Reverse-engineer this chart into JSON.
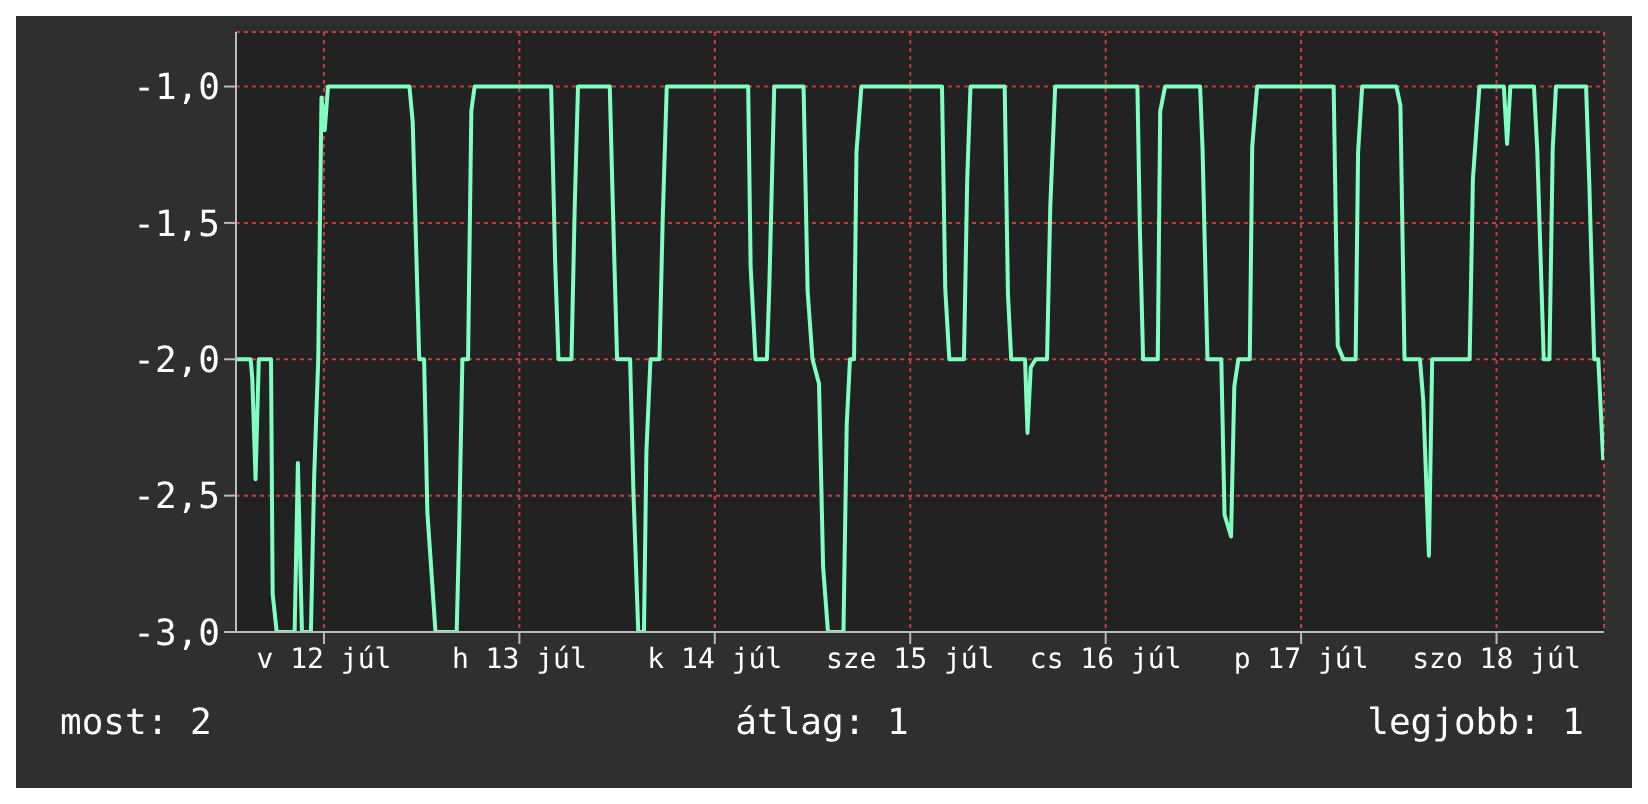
{
  "chart_data": {
    "type": "line",
    "xlim": [
      "--07-12T01:12",
      "--07-19T01:12"
    ],
    "xticks": [
      {
        "value": "--07-12T12:00",
        "label": "v 12 júl"
      },
      {
        "value": "--07-13T12:00",
        "label": "h 13 júl"
      },
      {
        "value": "--07-14T12:00",
        "label": "k 14 júl"
      },
      {
        "value": "--07-15T12:00",
        "label": "sze 15 júl"
      },
      {
        "value": "--07-16T12:00",
        "label": "cs 16 júl"
      },
      {
        "value": "--07-17T12:00",
        "label": "p 17 júl"
      },
      {
        "value": "--07-18T12:00",
        "label": "szo 18 júl"
      }
    ],
    "ylim": [
      -3,
      -0.8
    ],
    "yticks": [
      {
        "value": -3,
        "label": "-3,0"
      },
      {
        "value": -2.5,
        "label": "-2,5"
      },
      {
        "value": -2,
        "label": "-2,0"
      },
      {
        "value": -1.5,
        "label": "-1,5"
      },
      {
        "value": -1,
        "label": "-1,0"
      }
    ],
    "grid": true,
    "marker": "none",
    "line_style": "solid",
    "annotations": [
      "most: 2",
      "átlag: 1",
      "legjobb: 1"
    ],
    "series": [
      {
        "color": "#80ffc0",
        "x": [
          "--07-12T01:12",
          "--07-12T03:00",
          "--07-12T03:12",
          "--07-12T03:36",
          "--07-12T04:00",
          "--07-12T05:30",
          "--07-12T05:42",
          "--07-12T06:12",
          "--07-12T08:24",
          "--07-12T08:48",
          "--07-12T09:18",
          "--07-12T10:24",
          "--07-12T10:48",
          "--07-12T11:18",
          "--07-12T11:42",
          "--07-12T12:06",
          "--07-12T12:30",
          "--07-12T22:30",
          "--07-12T22:54",
          "--07-12T23:42",
          "--07-13T00:18",
          "--07-13T00:42",
          "--07-13T01:42",
          "--07-13T04:18",
          "--07-13T04:36",
          "--07-13T05:00",
          "--07-13T05:42",
          "--07-13T06:06",
          "--07-13T06:30",
          "--07-13T15:54",
          "--07-13T16:24",
          "--07-13T16:48",
          "--07-13T18:24",
          "--07-13T18:48",
          "--07-13T19:12",
          "--07-13T23:06",
          "--07-13T23:30",
          "--07-14T00:00",
          "--07-14T01:36",
          "--07-14T02:00",
          "--07-14T02:36",
          "--07-14T03:18",
          "--07-14T03:36",
          "--07-14T04:06",
          "--07-14T05:12",
          "--07-14T05:36",
          "--07-14T06:06",
          "--07-14T16:06",
          "--07-14T16:24",
          "--07-14T17:00",
          "--07-14T18:24",
          "--07-14T18:42",
          "--07-14T19:18",
          "--07-14T22:54",
          "--07-14T23:24",
          "--07-15T00:00",
          "--07-15T00:48",
          "--07-15T01:18",
          "--07-15T01:54",
          "--07-15T03:48",
          "--07-15T04:12",
          "--07-15T04:36",
          "--07-15T05:06",
          "--07-15T05:24",
          "--07-15T06:00",
          "--07-15T15:54",
          "--07-15T16:18",
          "--07-15T16:48",
          "--07-15T18:36",
          "--07-15T19:00",
          "--07-15T19:24",
          "--07-15T23:36",
          "--07-16T00:00",
          "--07-16T00:24",
          "--07-16T02:06",
          "--07-16T02:24",
          "--07-16T02:48",
          "--07-16T03:24",
          "--07-16T04:48",
          "--07-16T05:12",
          "--07-16T05:48",
          "--07-16T15:54",
          "--07-16T16:12",
          "--07-16T16:36",
          "--07-16T18:24",
          "--07-16T18:42",
          "--07-16T19:18",
          "--07-16T23:36",
          "--07-16T23:54",
          "--07-17T00:30",
          "--07-17T02:12",
          "--07-17T02:36",
          "--07-17T03:24",
          "--07-17T03:48",
          "--07-17T04:18",
          "--07-17T05:42",
          "--07-17T06:00",
          "--07-17T06:36",
          "--07-17T16:00",
          "--07-17T16:30",
          "--07-17T17:12",
          "--07-17T18:42",
          "--07-17T19:00",
          "--07-17T19:30",
          "--07-17T23:42",
          "--07-18T00:12",
          "--07-18T00:42",
          "--07-18T02:36",
          "--07-18T03:00",
          "--07-18T03:42",
          "--07-18T04:06",
          "--07-18T08:42",
          "--07-18T09:06",
          "--07-18T09:54",
          "--07-18T12:54",
          "--07-18T13:18",
          "--07-18T13:42",
          "--07-18T16:36",
          "--07-18T17:00",
          "--07-18T17:48",
          "--07-18T18:30",
          "--07-18T18:54",
          "--07-18T19:18",
          "--07-18T23:00",
          "--07-18T23:24",
          "--07-19T00:00",
          "--07-19T00:30",
          "--07-19T01:06"
        ],
        "values": [
          -2,
          -2,
          -2.07,
          -2.44,
          -2,
          -2,
          -2.86,
          -3,
          -3,
          -2.38,
          -3,
          -3,
          -2.43,
          -2,
          -1.04,
          -1.16,
          -1,
          -1,
          -1.13,
          -2,
          -2,
          -2.56,
          -3,
          -3,
          -2.64,
          -2,
          -2,
          -1.09,
          -1,
          -1,
          -1.65,
          -2,
          -2,
          -1.44,
          -1,
          -1,
          -1.46,
          -2,
          -2,
          -2.48,
          -3,
          -3,
          -2.34,
          -2,
          -2,
          -1.49,
          -1,
          -1,
          -1.66,
          -2,
          -2,
          -1.73,
          -1,
          -1,
          -1.75,
          -2,
          -2.09,
          -2.76,
          -3,
          -3,
          -2.24,
          -2,
          -2,
          -1.24,
          -1,
          -1,
          -1.74,
          -2,
          -2,
          -1.34,
          -1,
          -1,
          -1.76,
          -2,
          -2,
          -2.27,
          -2.03,
          -2,
          -2,
          -1.44,
          -1,
          -1,
          -1.52,
          -2,
          -2,
          -1.09,
          -1,
          -1,
          -1.23,
          -2,
          -2,
          -2.57,
          -2.65,
          -2.1,
          -2,
          -2,
          -1.22,
          -1,
          -1,
          -1.95,
          -2,
          -2,
          -1.24,
          -1,
          -1,
          -1.07,
          -2,
          -2,
          -2.15,
          -2.72,
          -2,
          -2,
          -1.34,
          -1,
          -1,
          -1.21,
          -1,
          -1,
          -1.23,
          -2,
          -2,
          -1.23,
          -1,
          -1,
          -1.36,
          -2,
          -2,
          -2.37
        ]
      }
    ]
  }
}
